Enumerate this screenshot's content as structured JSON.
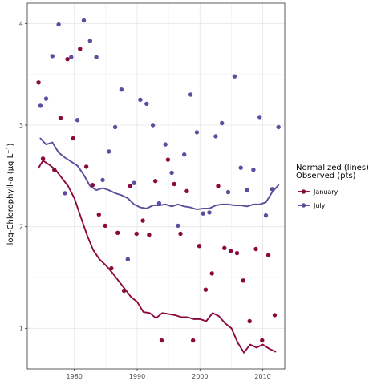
{
  "chart_data": {
    "type": "scatter",
    "title": "",
    "xlabel": "",
    "ylabel": "log-Chlorophyll-a (µg L⁻¹)",
    "xlim": [
      1972.5,
      2013.5
    ],
    "ylim": [
      0.6,
      4.2
    ],
    "x_ticks": [
      1980,
      1990,
      2000,
      2010
    ],
    "y_ticks": [
      1,
      2,
      3,
      4
    ],
    "grid": true,
    "legend": {
      "title_line1": "Normalized (lines)",
      "title_line2": "Observed (pts)",
      "placement": "right"
    },
    "series": [
      {
        "name": "January",
        "color": "#8b0a3d",
        "points": [
          [
            1974.3,
            3.42
          ],
          [
            1975.0,
            2.67
          ],
          [
            1976.8,
            2.56
          ],
          [
            1977.8,
            3.07
          ],
          [
            1978.9,
            3.65
          ],
          [
            1979.8,
            2.87
          ],
          [
            1980.9,
            3.75
          ],
          [
            1981.9,
            2.59
          ],
          [
            1982.9,
            2.41
          ],
          [
            1983.9,
            2.12
          ],
          [
            1984.9,
            2.01
          ],
          [
            1985.9,
            1.59
          ],
          [
            1986.9,
            1.94
          ],
          [
            1987.9,
            1.37
          ],
          [
            1988.9,
            2.4
          ],
          [
            1989.9,
            1.93
          ],
          [
            1990.9,
            2.06
          ],
          [
            1991.9,
            1.92
          ],
          [
            1992.9,
            2.45
          ],
          [
            1993.9,
            0.88
          ],
          [
            1994.9,
            2.66
          ],
          [
            1995.9,
            2.42
          ],
          [
            1996.9,
            1.93
          ],
          [
            1997.9,
            2.35
          ],
          [
            1998.9,
            0.88
          ],
          [
            1999.9,
            1.81
          ],
          [
            2000.9,
            1.38
          ],
          [
            2001.9,
            1.54
          ],
          [
            2002.9,
            2.4
          ],
          [
            2003.9,
            1.79
          ],
          [
            2004.9,
            1.76
          ],
          [
            2005.9,
            1.74
          ],
          [
            2006.9,
            1.47
          ],
          [
            2007.9,
            1.07
          ],
          [
            2008.9,
            1.78
          ],
          [
            2009.9,
            0.88
          ],
          [
            2010.9,
            1.72
          ],
          [
            2011.9,
            1.13
          ]
        ],
        "line": [
          [
            1974.3,
            2.58
          ],
          [
            1975.0,
            2.65
          ],
          [
            1976.0,
            2.61
          ],
          [
            1977.0,
            2.56
          ],
          [
            1978.0,
            2.48
          ],
          [
            1979.0,
            2.4
          ],
          [
            1980.0,
            2.28
          ],
          [
            1981.0,
            2.1
          ],
          [
            1982.0,
            1.92
          ],
          [
            1983.0,
            1.77
          ],
          [
            1984.0,
            1.68
          ],
          [
            1985.0,
            1.62
          ],
          [
            1986.0,
            1.55
          ],
          [
            1987.0,
            1.47
          ],
          [
            1988.0,
            1.39
          ],
          [
            1989.0,
            1.31
          ],
          [
            1990.0,
            1.26
          ],
          [
            1991.0,
            1.16
          ],
          [
            1992.0,
            1.15
          ],
          [
            1993.0,
            1.1
          ],
          [
            1994.0,
            1.15
          ],
          [
            1995.0,
            1.14
          ],
          [
            1996.0,
            1.13
          ],
          [
            1997.0,
            1.11
          ],
          [
            1998.0,
            1.11
          ],
          [
            1999.0,
            1.09
          ],
          [
            2000.0,
            1.09
          ],
          [
            2001.0,
            1.07
          ],
          [
            2002.0,
            1.15
          ],
          [
            2003.0,
            1.12
          ],
          [
            2004.0,
            1.05
          ],
          [
            2005.0,
            1.0
          ],
          [
            2006.0,
            0.86
          ],
          [
            2007.0,
            0.76
          ],
          [
            2008.0,
            0.84
          ],
          [
            2009.0,
            0.81
          ],
          [
            2010.0,
            0.84
          ],
          [
            2011.0,
            0.8
          ],
          [
            2012.0,
            0.77
          ]
        ]
      },
      {
        "name": "July",
        "color": "#5c4d9e",
        "points": [
          [
            1974.6,
            3.19
          ],
          [
            1975.5,
            3.26
          ],
          [
            1976.5,
            3.68
          ],
          [
            1977.5,
            3.99
          ],
          [
            1978.5,
            2.33
          ],
          [
            1979.5,
            3.67
          ],
          [
            1980.5,
            3.05
          ],
          [
            1981.5,
            4.03
          ],
          [
            1982.5,
            3.83
          ],
          [
            1983.5,
            3.67
          ],
          [
            1984.5,
            2.46
          ],
          [
            1985.5,
            2.74
          ],
          [
            1986.5,
            2.98
          ],
          [
            1987.5,
            3.35
          ],
          [
            1988.5,
            1.68
          ],
          [
            1989.5,
            2.43
          ],
          [
            1990.5,
            3.25
          ],
          [
            1991.5,
            3.21
          ],
          [
            1992.5,
            3.0
          ],
          [
            1993.5,
            2.23
          ],
          [
            1994.5,
            2.81
          ],
          [
            1995.5,
            2.53
          ],
          [
            1996.5,
            2.01
          ],
          [
            1997.5,
            2.71
          ],
          [
            1998.5,
            3.3
          ],
          [
            1999.5,
            2.93
          ],
          [
            2000.5,
            2.13
          ],
          [
            2001.5,
            2.14
          ],
          [
            2002.5,
            2.89
          ],
          [
            2003.5,
            3.02
          ],
          [
            2004.5,
            2.34
          ],
          [
            2005.5,
            3.48
          ],
          [
            2006.5,
            2.58
          ],
          [
            2007.5,
            2.36
          ],
          [
            2008.5,
            2.56
          ],
          [
            2009.5,
            3.08
          ],
          [
            2010.5,
            2.11
          ],
          [
            2011.5,
            2.37
          ],
          [
            2012.5,
            2.98
          ]
        ],
        "line": [
          [
            1974.6,
            2.87
          ],
          [
            1975.5,
            2.81
          ],
          [
            1976.5,
            2.83
          ],
          [
            1977.5,
            2.73
          ],
          [
            1978.5,
            2.68
          ],
          [
            1979.5,
            2.64
          ],
          [
            1980.5,
            2.6
          ],
          [
            1981.5,
            2.51
          ],
          [
            1982.5,
            2.4
          ],
          [
            1983.5,
            2.36
          ],
          [
            1984.5,
            2.38
          ],
          [
            1985.5,
            2.36
          ],
          [
            1986.5,
            2.33
          ],
          [
            1987.5,
            2.31
          ],
          [
            1988.5,
            2.28
          ],
          [
            1989.5,
            2.22
          ],
          [
            1990.5,
            2.19
          ],
          [
            1991.5,
            2.18
          ],
          [
            1992.5,
            2.21
          ],
          [
            1993.5,
            2.21
          ],
          [
            1994.5,
            2.22
          ],
          [
            1995.5,
            2.2
          ],
          [
            1996.5,
            2.22
          ],
          [
            1997.5,
            2.2
          ],
          [
            1998.5,
            2.19
          ],
          [
            1999.5,
            2.17
          ],
          [
            2000.5,
            2.18
          ],
          [
            2001.5,
            2.18
          ],
          [
            2002.5,
            2.21
          ],
          [
            2003.5,
            2.22
          ],
          [
            2004.5,
            2.22
          ],
          [
            2005.5,
            2.21
          ],
          [
            2006.5,
            2.21
          ],
          [
            2007.5,
            2.2
          ],
          [
            2008.5,
            2.22
          ],
          [
            2009.5,
            2.22
          ],
          [
            2010.5,
            2.24
          ],
          [
            2011.5,
            2.34
          ],
          [
            2012.5,
            2.41
          ]
        ]
      }
    ]
  }
}
